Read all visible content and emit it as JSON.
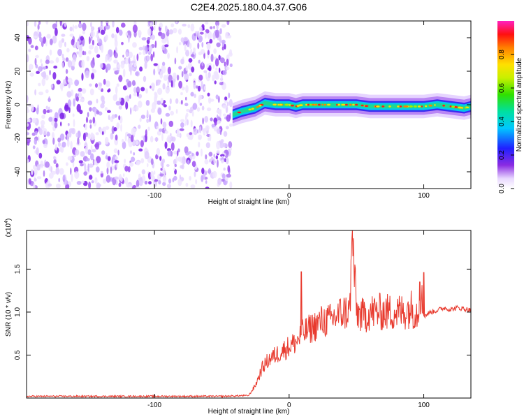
{
  "title": "C2E4.2025.180.04.37.G06",
  "colorbar": {
    "label": "Normalized spectral amplitude",
    "ticks": [
      "0.0",
      "0.2",
      "0.4",
      "0.6",
      "0.8"
    ],
    "tick_values": [
      0.0,
      0.2,
      0.4,
      0.6,
      0.8
    ]
  },
  "chart_data": [
    {
      "type": "heatmap",
      "xlabel": "Height of straight line (km)",
      "ylabel": "Frequency (Hz)",
      "xlim": [
        -195,
        135
      ],
      "ylim": [
        -50,
        50
      ],
      "x_ticks": [
        -100,
        0,
        100
      ],
      "x_tick_labels": [
        "-100",
        "0",
        "100"
      ],
      "y_ticks": [
        -40,
        -20,
        0,
        20,
        40
      ],
      "y_tick_labels": [
        "-40",
        "-20",
        "0",
        "20",
        "40"
      ],
      "noise_region_x": [
        -195,
        -43
      ],
      "signal_track": {
        "x": [
          -42,
          -35,
          -25,
          -18,
          -10,
          -5,
          0,
          5,
          10,
          20,
          30,
          40,
          50,
          60,
          70,
          80,
          90,
          100,
          110,
          120,
          130,
          135
        ],
        "freq": [
          -6,
          -4,
          -2,
          1,
          0,
          0,
          0,
          -1,
          0,
          0,
          0,
          0,
          0,
          -1,
          -1,
          -1,
          -1,
          -1,
          0,
          -1,
          -2,
          -1
        ],
        "peak_amplitude": 0.9
      }
    },
    {
      "type": "line",
      "xlabel": "Height of straight line (km)",
      "ylabel": "SNR (10 * v/v)",
      "y_multiplier": "(x10",
      "y_multiplier_exp": "4",
      "y_multiplier_close": ")",
      "xlim": [
        -195,
        135
      ],
      "ylim": [
        0,
        1.95
      ],
      "x_ticks": [
        -100,
        0,
        100
      ],
      "x_tick_labels": [
        "-100",
        "0",
        "100"
      ],
      "y_ticks": [
        0.5,
        1.0,
        1.5
      ],
      "y_tick_labels": [
        "0.5",
        "1.0",
        "1.5"
      ],
      "series": [
        {
          "color": "#e83a2e",
          "x": [
            -195,
            -150,
            -100,
            -50,
            -30,
            -25,
            -20,
            -15,
            -10,
            -5,
            0,
            5,
            10,
            15,
            20,
            25,
            30,
            35,
            40,
            45,
            47,
            50,
            55,
            60,
            65,
            70,
            75,
            80,
            85,
            90,
            95,
            98,
            100,
            105,
            110,
            115,
            120,
            125,
            130,
            135
          ],
          "y": [
            0.02,
            0.02,
            0.02,
            0.02,
            0.03,
            0.15,
            0.35,
            0.45,
            0.5,
            0.55,
            0.6,
            0.65,
            0.75,
            0.8,
            0.85,
            0.9,
            0.9,
            0.95,
            1.0,
            1.0,
            1.9,
            1.0,
            0.95,
            1.0,
            1.0,
            1.0,
            1.0,
            1.0,
            1.0,
            1.05,
            1.0,
            1.2,
            0.95,
            1.0,
            1.02,
            1.05,
            1.03,
            1.05,
            1.04,
            1.02
          ]
        }
      ],
      "spikes": [
        {
          "x": 9,
          "y": 1.47
        },
        {
          "x": 47,
          "y": 1.95
        },
        {
          "x": 97,
          "y": 1.35
        },
        {
          "x": 100,
          "y": 1.46
        }
      ]
    }
  ]
}
